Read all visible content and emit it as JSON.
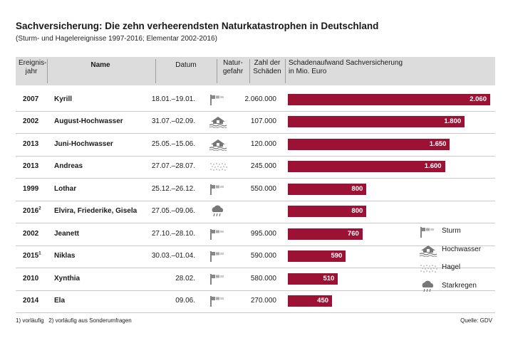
{
  "title": "Sachversicherung: Die zehn verheerendsten Naturkatastrophen in Deutschland",
  "subtitle": "(Sturm- und Hagelereignisse 1997-2016; Elementar 2002-2016)",
  "headers": {
    "year_line1": "Ereignis-",
    "year_line2": "jahr",
    "name": "Name",
    "date": "Datum",
    "hazard_line1": "Natur-",
    "hazard_line2": "gefahr",
    "claims_line1": "Zahl der",
    "claims_line2": "Schäden",
    "damage_line1": "Schadenaufwand Sachversicherung",
    "damage_line2": "in Mio. Euro"
  },
  "chart_data": {
    "type": "bar",
    "orientation": "horizontal",
    "value_unit": "Mio. Euro",
    "rows": [
      {
        "year": "2007",
        "sup": "",
        "name": "Kyrill",
        "date": "18.01.–19.01.",
        "hazard": "sturm",
        "claims": "2.060.000",
        "value": 2060,
        "value_label": "2.060"
      },
      {
        "year": "2002",
        "sup": "",
        "name": "August-Hochwasser",
        "date": "31.07.–02.09.",
        "hazard": "hochwasser",
        "claims": "107.000",
        "value": 1800,
        "value_label": "1.800"
      },
      {
        "year": "2013",
        "sup": "",
        "name": "Juni-Hochwasser",
        "date": "25.05.–15.06.",
        "hazard": "hochwasser",
        "claims": "120.000",
        "value": 1650,
        "value_label": "1.650"
      },
      {
        "year": "2013",
        "sup": "",
        "name": "Andreas",
        "date": "27.07.–28.07.",
        "hazard": "hagel",
        "claims": "245.000",
        "value": 1600,
        "value_label": "1.600"
      },
      {
        "year": "1999",
        "sup": "",
        "name": "Lothar",
        "date": "25.12.–26.12.",
        "hazard": "sturm",
        "claims": "550.000",
        "value": 800,
        "value_label": "800"
      },
      {
        "year": "2016",
        "sup": "2",
        "name": "Elvira, Friederike, Gisela",
        "date": "27.05.–09.06.",
        "hazard": "starkregen",
        "claims": "",
        "value": 800,
        "value_label": "800"
      },
      {
        "year": "2002",
        "sup": "",
        "name": "Jeanett",
        "date": "27.10.–28.10.",
        "hazard": "sturm",
        "claims": "995.000",
        "value": 760,
        "value_label": "760"
      },
      {
        "year": "2015",
        "sup": "1",
        "name": "Niklas",
        "date": "30.03.–01.04.",
        "hazard": "sturm",
        "claims": "590.000",
        "value": 590,
        "value_label": "590"
      },
      {
        "year": "2010",
        "sup": "",
        "name": "Xynthia",
        "date": "28.02.",
        "hazard": "sturm",
        "claims": "580.000",
        "value": 510,
        "value_label": "510"
      },
      {
        "year": "2014",
        "sup": "",
        "name": "Ela",
        "date": "09.06.",
        "hazard": "sturm",
        "claims": "270.000",
        "value": 450,
        "value_label": "450"
      }
    ],
    "legend": [
      {
        "key": "sturm",
        "label": "Sturm"
      },
      {
        "key": "hochwasser",
        "label": "Hochwasser"
      },
      {
        "key": "hagel",
        "label": "Hagel"
      },
      {
        "key": "starkregen",
        "label": "Starkregen"
      }
    ],
    "bar_color": "#9b1235"
  },
  "footnote": "1) vorläufig   2) vorläufig aus Sonderumfragen",
  "source": "Quelle: GDV"
}
